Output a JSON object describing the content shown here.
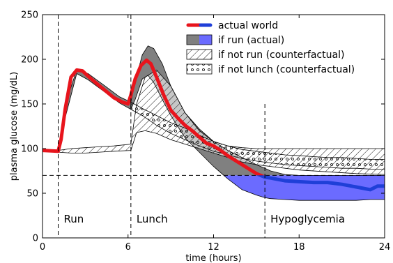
{
  "chart_data": {
    "type": "area",
    "xlabel": "time (hours)",
    "ylabel": "plasma glucose (mg/dL)",
    "xlim": [
      0,
      24
    ],
    "ylim": [
      0,
      250
    ],
    "xticks": [
      0,
      6,
      12,
      18,
      24
    ],
    "yticks": [
      0,
      50,
      100,
      150,
      200,
      250
    ],
    "grid": false,
    "legend_position": "top-right",
    "colors": {
      "actual_above": "#e8141c",
      "actual_below": "#1f3fd8",
      "run_fill_above": "#808080",
      "run_fill_below": "#6b6bff"
    },
    "threshold": {
      "y": 70
    },
    "event_lines": [
      {
        "x": 1.1,
        "label": "Run"
      },
      {
        "x": 6.2,
        "label": "Lunch"
      },
      {
        "x": 15.6,
        "label": "Hypoglycemia"
      }
    ],
    "legend": [
      {
        "label": "actual world",
        "kind": "line"
      },
      {
        "label": "if run (actual)",
        "kind": "run-band"
      },
      {
        "label": "if not run (counterfactual)",
        "kind": "hatch-band"
      },
      {
        "label": "if not lunch (counterfactual)",
        "kind": "dots-band"
      }
    ],
    "series": [
      {
        "name": "actual world",
        "kind": "line",
        "x": [
          0,
          1.1,
          1.3,
          1.6,
          2.0,
          2.4,
          2.8,
          3.2,
          3.8,
          4.4,
          5.0,
          5.6,
          6.0,
          6.2,
          6.5,
          6.9,
          7.3,
          7.6,
          8.0,
          8.5,
          9.0,
          9.5,
          10,
          10.5,
          11,
          11.5,
          12,
          12.5,
          13,
          13.5,
          14,
          14.5,
          15,
          15.6,
          16,
          17,
          18,
          19,
          20,
          21,
          22,
          23,
          23.5,
          24
        ],
        "y": [
          98,
          97,
          110,
          145,
          180,
          188,
          187,
          181,
          173,
          165,
          157,
          152,
          150,
          160,
          178,
          193,
          199,
          195,
          180,
          160,
          143,
          134,
          126,
          120,
          113,
          106,
          103,
          98,
          92,
          87,
          82,
          77,
          72,
          68,
          67,
          64,
          63,
          62,
          62,
          60,
          57,
          54,
          58,
          58
        ]
      },
      {
        "name": "if run (actual)",
        "kind": "band",
        "x": [
          1.1,
          1.6,
          2.4,
          3.2,
          4.4,
          5.4,
          6.2,
          6.5,
          7.0,
          7.4,
          7.8,
          8.4,
          9.0,
          10,
          11,
          12,
          13,
          14,
          15,
          15.6,
          16,
          17,
          18,
          19,
          20,
          21,
          22,
          23,
          24
        ],
        "upper": [
          97,
          150,
          188,
          184,
          170,
          158,
          152,
          175,
          205,
          215,
          212,
          195,
          170,
          140,
          122,
          108,
          98,
          90,
          82,
          78,
          75,
          71,
          70,
          70,
          70,
          70,
          70,
          70,
          70
        ],
        "lower": [
          97,
          135,
          184,
          177,
          163,
          151,
          144,
          155,
          178,
          182,
          174,
          155,
          137,
          112,
          96,
          80,
          66,
          54,
          48,
          45,
          44,
          43,
          42,
          42,
          42,
          42,
          42,
          43,
          43
        ]
      },
      {
        "name": "if not run (counterfactual)",
        "kind": "band",
        "x": [
          1.1,
          2,
          3,
          4,
          5,
          6.2,
          6.6,
          7.2,
          8,
          9,
          10,
          11,
          12,
          13,
          14,
          15,
          16,
          18,
          20,
          22,
          24
        ],
        "upper": [
          98,
          100,
          101,
          102,
          103,
          105,
          150,
          180,
          188,
          170,
          140,
          120,
          108,
          103,
          101,
          100,
          100,
          100,
          100,
          100,
          100
        ],
        "lower": [
          96,
          95,
          95,
          96,
          97,
          98,
          118,
          120,
          117,
          110,
          105,
          100,
          95,
          90,
          85,
          82,
          80,
          76,
          74,
          72,
          71
        ]
      },
      {
        "name": "if not lunch (counterfactual)",
        "kind": "band",
        "x": [
          6.2,
          7,
          8,
          9,
          10,
          11,
          12,
          13,
          14,
          15,
          16,
          17,
          18,
          19,
          20,
          21,
          22,
          23,
          24
        ],
        "upper": [
          152,
          145,
          137,
          129,
          123,
          115,
          108,
          103,
          99,
          97,
          95,
          93,
          92,
          91,
          90,
          90,
          89,
          88,
          88
        ],
        "lower": [
          144,
          137,
          126,
          117,
          110,
          103,
          97,
          93,
          89,
          86,
          84,
          82,
          81,
          80,
          79,
          78,
          78,
          77,
          77
        ]
      }
    ]
  }
}
